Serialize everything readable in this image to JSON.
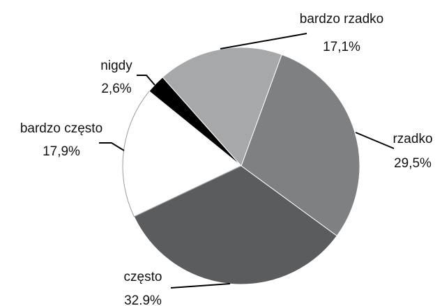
{
  "chart_data": {
    "type": "pie",
    "categories": [
      "rzadko",
      "często",
      "bardzo często",
      "nigdy",
      "bardzo rzadko"
    ],
    "values": [
      29.5,
      32.9,
      17.9,
      2.6,
      17.1
    ],
    "value_labels": [
      "29,5%",
      "32.9%",
      "17,9%",
      "2,6%",
      "17,1%"
    ],
    "colors": [
      "#7f8081",
      "#5b5c5e",
      "#ffffff",
      "#000000",
      "#a7a8aa"
    ]
  }
}
